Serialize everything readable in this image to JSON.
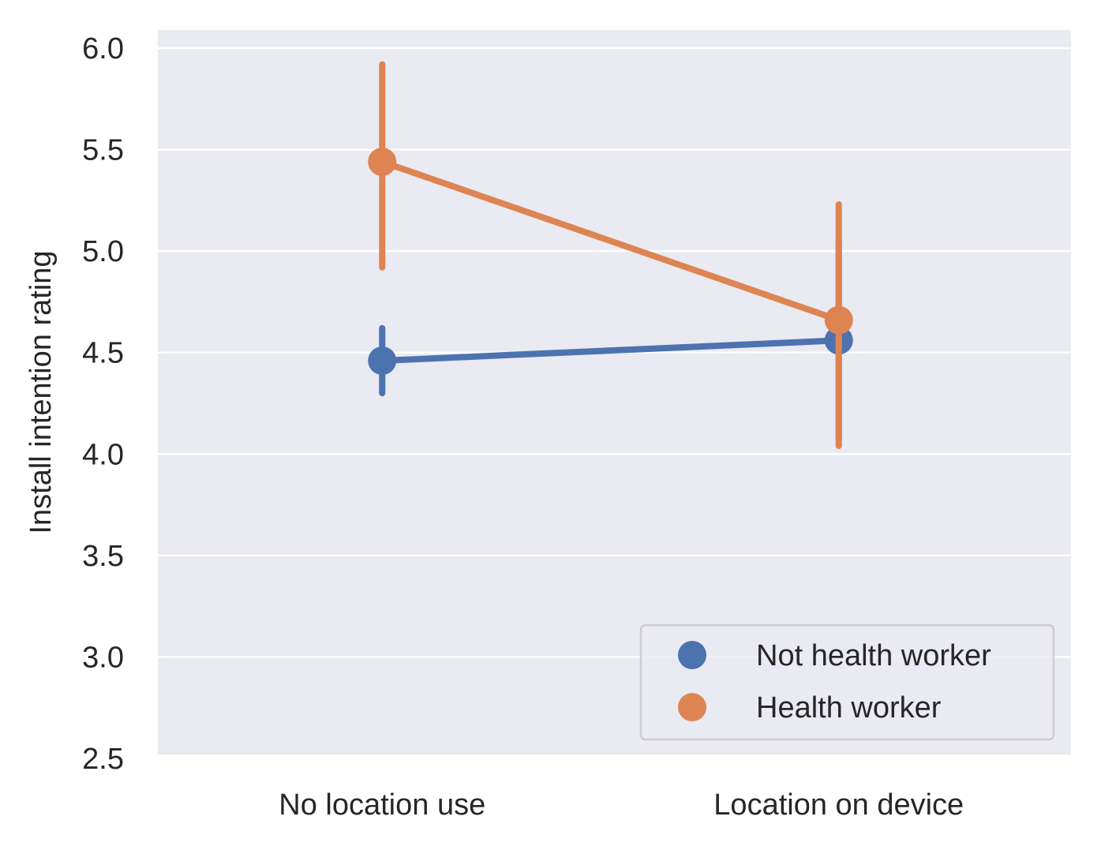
{
  "chart_data": {
    "type": "line",
    "title": "",
    "xlabel": "",
    "ylabel": "Install intention rating",
    "categories": [
      "No location use",
      "Location on device"
    ],
    "ylim": [
      2.5,
      6.1
    ],
    "yticks": [
      "2.5",
      "3.0",
      "3.5",
      "4.0",
      "4.5",
      "5.0",
      "5.5",
      "6.0"
    ],
    "grid": true,
    "legend_position": "bottom-right",
    "series": [
      {
        "name": "Not health worker",
        "color": "#4c72b0",
        "values": [
          4.46,
          4.56
        ],
        "ci_low": [
          4.3,
          4.07
        ],
        "ci_high": [
          4.62,
          5.05
        ]
      },
      {
        "name": "Health worker",
        "color": "#dd8452",
        "values": [
          5.44,
          4.66
        ],
        "ci_low": [
          4.92,
          4.04
        ],
        "ci_high": [
          5.92,
          5.23
        ]
      }
    ]
  }
}
